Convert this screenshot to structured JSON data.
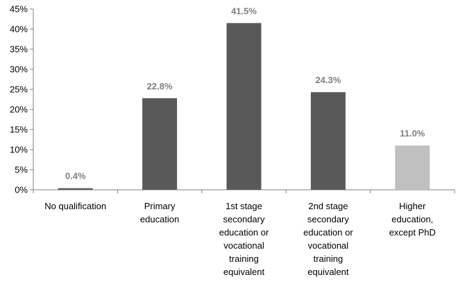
{
  "chart_data": {
    "type": "bar",
    "title": "",
    "xlabel": "",
    "ylabel": "",
    "ylim": [
      0,
      45
    ],
    "yticks": [
      "0%",
      "5%",
      "10%",
      "15%",
      "20%",
      "25%",
      "30%",
      "35%",
      "40%",
      "45%"
    ],
    "ytick_values": [
      0,
      5,
      10,
      15,
      20,
      25,
      30,
      35,
      40,
      45
    ],
    "grid": false,
    "legend": "none",
    "categories": [
      [
        "No qualification"
      ],
      [
        "Primary",
        "education"
      ],
      [
        "1st stage",
        "secondary",
        "education or",
        "vocational",
        "training",
        "equivalent"
      ],
      [
        "2nd stage",
        "secondary",
        "education or",
        "vocational",
        "training",
        "equivalent"
      ],
      [
        "Higher",
        "education,",
        "except PhD"
      ]
    ],
    "values": [
      0.4,
      22.8,
      41.5,
      24.3,
      11.0
    ],
    "data_labels": [
      "0.4%",
      "22.8%",
      "41.5%",
      "24.3%",
      "11.0%"
    ],
    "colors": [
      "#595959",
      "#595959",
      "#595959",
      "#595959",
      "#c0c0c0"
    ],
    "axis_color": "#808080",
    "label_color": "#808080"
  }
}
